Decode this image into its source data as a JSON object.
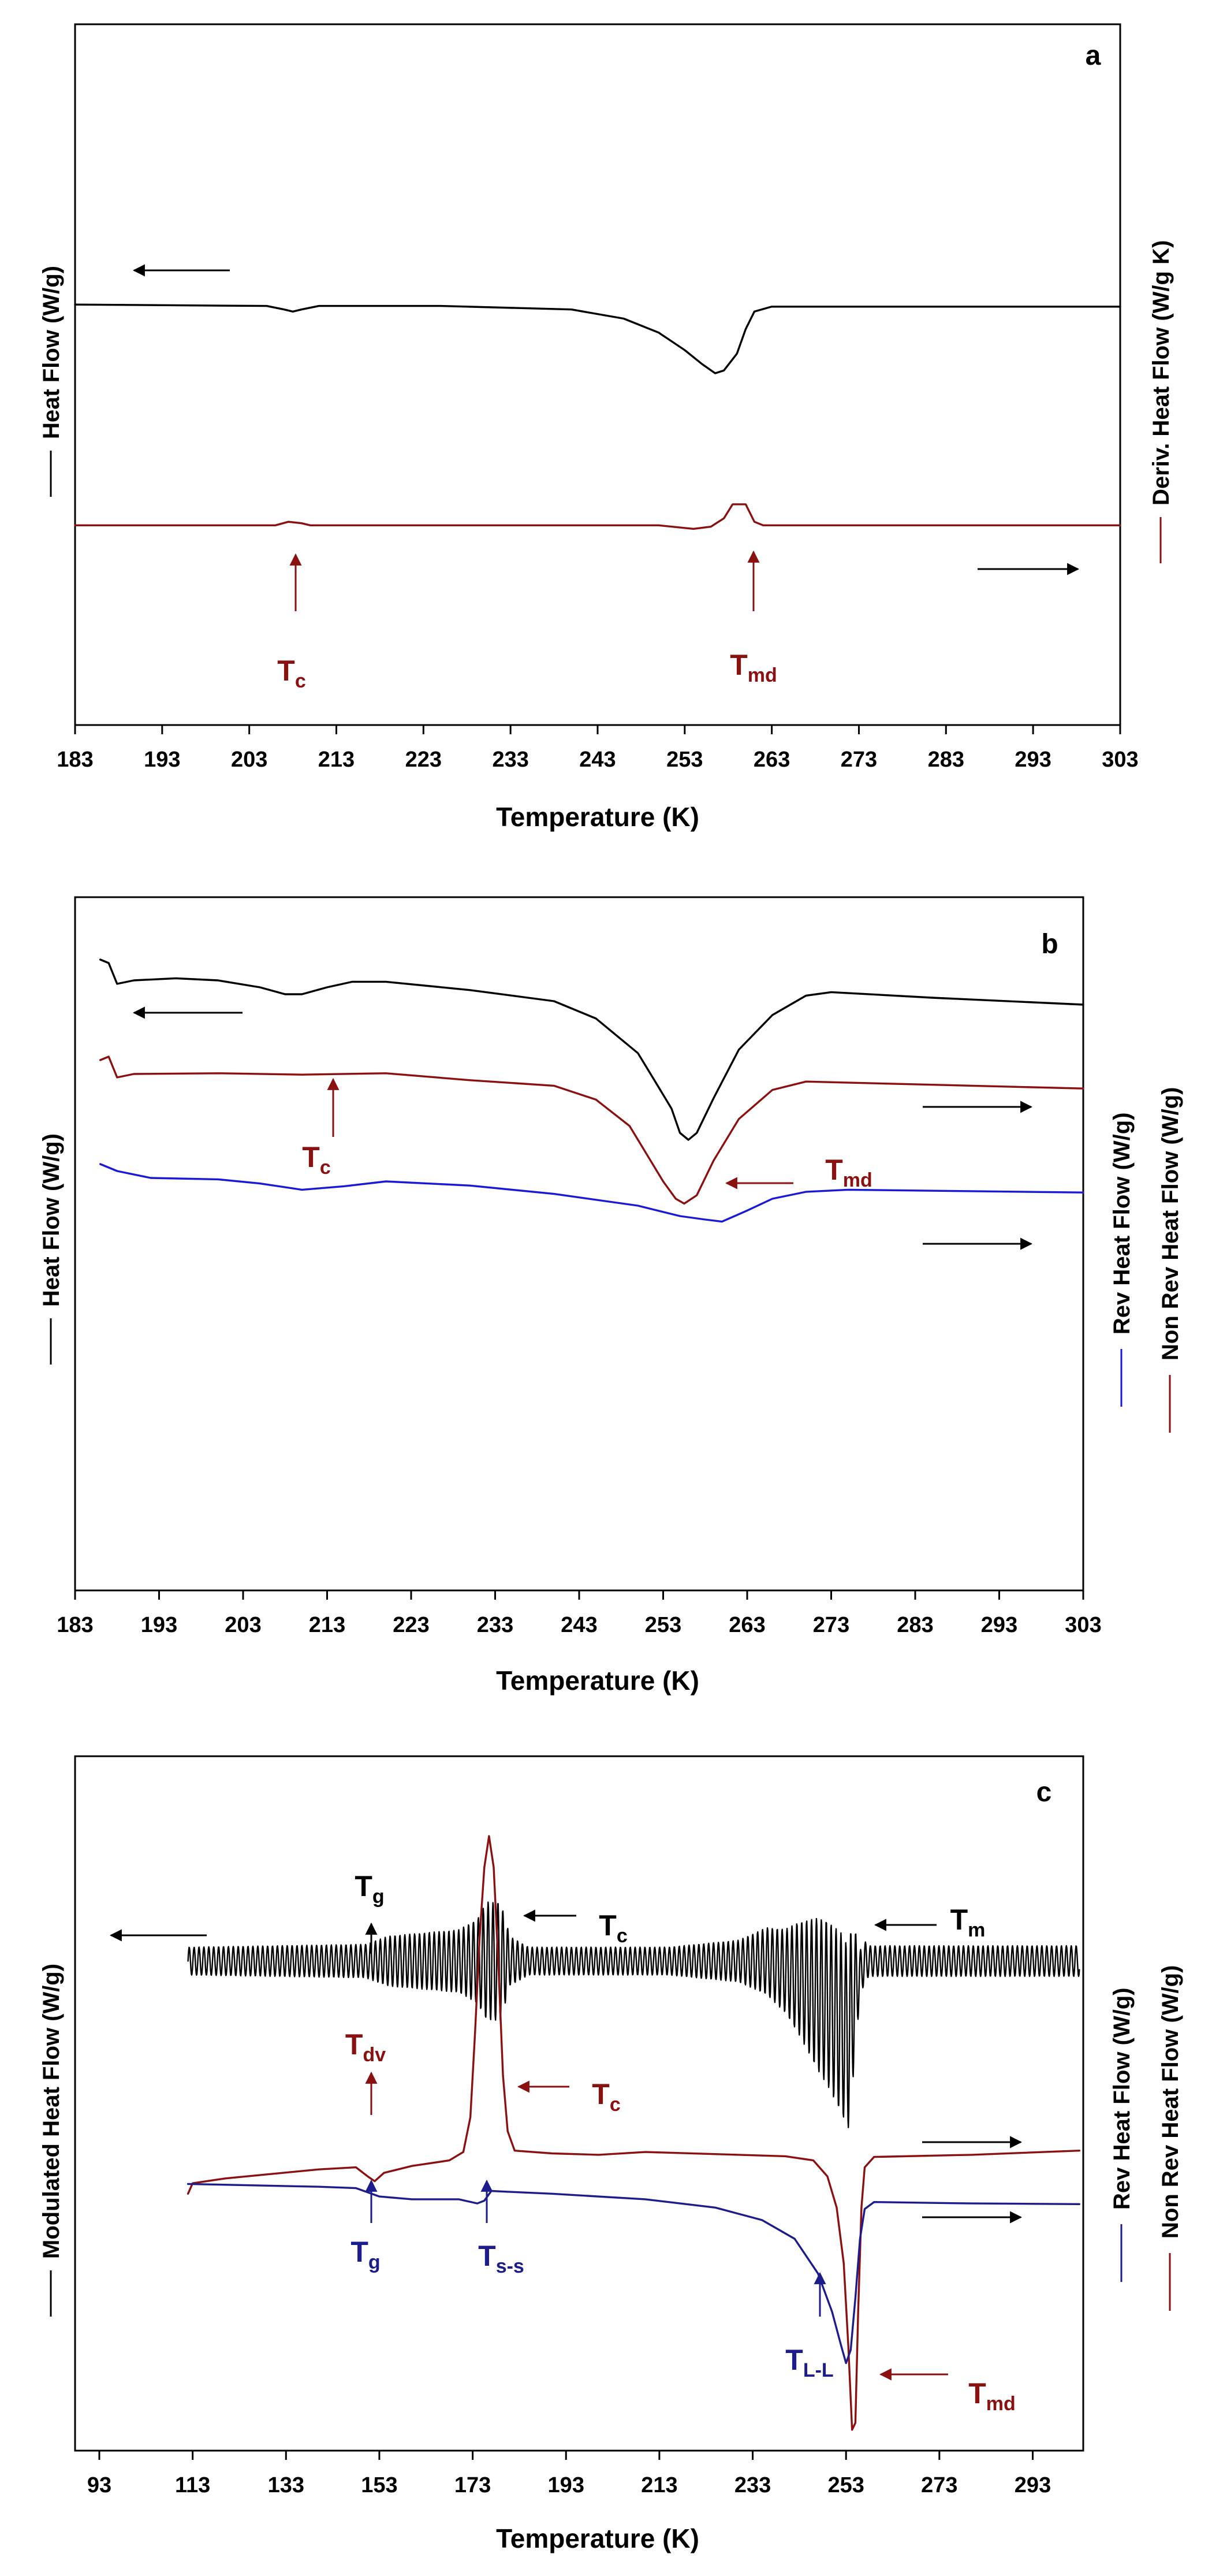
{
  "colors": {
    "black": "#000000",
    "darkred": "#8b1010",
    "blue": "#1a1ad6",
    "navy": "#1c1c8c"
  },
  "chart_data": [
    {
      "type": "line",
      "panel": "a",
      "xlabel": "Temperature (K)",
      "xlim": [
        183,
        303
      ],
      "ticks": [
        183,
        193,
        203,
        213,
        223,
        233,
        243,
        253,
        263,
        273,
        283,
        293,
        303
      ],
      "ylim": [
        0,
        100
      ],
      "left_ylabel": "Heat Flow (W/g)",
      "right_ylabels": [
        "Deriv. Heat Flow (W/g K)"
      ],
      "series": [
        {
          "name": "Heat Flow",
          "color": "#000000",
          "points": [
            [
              183,
              60.0
            ],
            [
              205,
              59.8
            ],
            [
              207,
              59.3
            ],
            [
              208,
              59.0
            ],
            [
              209,
              59.3
            ],
            [
              211,
              59.8
            ],
            [
              225,
              59.8
            ],
            [
              240,
              59.3
            ],
            [
              246,
              58.0
            ],
            [
              250,
              56.0
            ],
            [
              253,
              53.5
            ],
            [
              255,
              51.5
            ],
            [
              256.5,
              50.2
            ],
            [
              257.5,
              50.6
            ],
            [
              259,
              53.0
            ],
            [
              260,
              56.5
            ],
            [
              261,
              59.0
            ],
            [
              263,
              59.7
            ],
            [
              303,
              59.7
            ]
          ]
        },
        {
          "name": "Deriv. Heat Flow",
          "color": "#8b1010",
          "points": [
            [
              183,
              28.5
            ],
            [
              206,
              28.5
            ],
            [
              207.5,
              29.0
            ],
            [
              209,
              28.8
            ],
            [
              210,
              28.5
            ],
            [
              250,
              28.5
            ],
            [
              254,
              28.0
            ],
            [
              256,
              28.3
            ],
            [
              257.5,
              29.5
            ],
            [
              258.5,
              31.5
            ],
            [
              260,
              31.5
            ],
            [
              261,
              29.0
            ],
            [
              262,
              28.5
            ],
            [
              303,
              28.5
            ]
          ]
        }
      ],
      "annotations": [
        {
          "label": "T",
          "sub": "c",
          "color": "#8b1010"
        },
        {
          "label": "T",
          "sub": "md",
          "color": "#8b1010"
        }
      ]
    },
    {
      "type": "line",
      "panel": "b",
      "xlabel": "Temperature (K)",
      "xlim": [
        183,
        303
      ],
      "ticks": [
        183,
        193,
        203,
        213,
        223,
        233,
        243,
        253,
        263,
        273,
        283,
        293,
        303
      ],
      "ylim": [
        0,
        100
      ],
      "left_ylabel": "Heat Flow (W/g)",
      "right_ylabels": [
        "Rev Heat Flow (W/g)",
        "Non Rev Heat Flow (W/g)"
      ],
      "series": [
        {
          "name": "Heat Flow",
          "color": "#000000",
          "points": [
            [
              186,
              91.0
            ],
            [
              187,
              90.5
            ],
            [
              188,
              87.5
            ],
            [
              190,
              88.0
            ],
            [
              195,
              88.3
            ],
            [
              200,
              88.0
            ],
            [
              205,
              87.0
            ],
            [
              208,
              86.0
            ],
            [
              210,
              86.0
            ],
            [
              213,
              87.0
            ],
            [
              216,
              87.8
            ],
            [
              220,
              87.8
            ],
            [
              230,
              86.6
            ],
            [
              240,
              85.0
            ],
            [
              245,
              82.5
            ],
            [
              250,
              77.5
            ],
            [
              252,
              73.5
            ],
            [
              254,
              69.5
            ],
            [
              255,
              66.0
            ],
            [
              256,
              65.0
            ],
            [
              257,
              66.0
            ],
            [
              259,
              71.0
            ],
            [
              262,
              78.0
            ],
            [
              266,
              83.0
            ],
            [
              270,
              85.8
            ],
            [
              273,
              86.3
            ],
            [
              285,
              85.5
            ],
            [
              303,
              84.5
            ]
          ]
        },
        {
          "name": "Non Rev Heat Flow",
          "color": "#8b1010",
          "points": [
            [
              186,
              76.5
            ],
            [
              187,
              77.0
            ],
            [
              188,
              74.0
            ],
            [
              190,
              74.5
            ],
            [
              200,
              74.6
            ],
            [
              210,
              74.4
            ],
            [
              220,
              74.6
            ],
            [
              230,
              73.6
            ],
            [
              240,
              72.8
            ],
            [
              245,
              70.8
            ],
            [
              249,
              67.0
            ],
            [
              251,
              63.0
            ],
            [
              253,
              59.0
            ],
            [
              254.5,
              56.5
            ],
            [
              255.5,
              55.8
            ],
            [
              257,
              57.0
            ],
            [
              259,
              62.0
            ],
            [
              262,
              68.0
            ],
            [
              266,
              72.2
            ],
            [
              270,
              73.4
            ],
            [
              303,
              72.4
            ]
          ]
        },
        {
          "name": "Rev Heat Flow",
          "color": "#1a1ad6",
          "points": [
            [
              186,
              61.5
            ],
            [
              188,
              60.5
            ],
            [
              192,
              59.5
            ],
            [
              200,
              59.3
            ],
            [
              205,
              58.7
            ],
            [
              210,
              57.8
            ],
            [
              215,
              58.3
            ],
            [
              220,
              59.0
            ],
            [
              230,
              58.4
            ],
            [
              240,
              57.2
            ],
            [
              250,
              55.5
            ],
            [
              255,
              54.0
            ],
            [
              258,
              53.5
            ],
            [
              260,
              53.2
            ],
            [
              263,
              54.8
            ],
            [
              266,
              56.5
            ],
            [
              270,
              57.5
            ],
            [
              275,
              57.8
            ],
            [
              303,
              57.4
            ]
          ]
        }
      ],
      "annotations": [
        {
          "label": "T",
          "sub": "c",
          "color": "#8b1010"
        },
        {
          "label": "T",
          "sub": "md",
          "color": "#8b1010"
        }
      ]
    },
    {
      "type": "line",
      "panel": "c",
      "xlabel": "Temperature (K)",
      "xlim": [
        88,
        303
      ],
      "ticks": [
        93,
        113,
        133,
        153,
        173,
        193,
        213,
        233,
        253,
        273,
        293
      ],
      "ylim": [
        0,
        100
      ],
      "left_ylabel": "Modulated Heat Flow (W/g)",
      "right_ylabels": [
        "Rev Heat Flow (W/g)",
        "Non Rev Heat Flow (W/g)"
      ],
      "series": [
        {
          "name": "Modulated Heat Flow",
          "color": "#000000",
          "oscillating": true,
          "center": 70.5,
          "amplitude_envelope": [
            [
              112,
              2.0
            ],
            [
              150,
              2.4
            ],
            [
              155,
              3.6
            ],
            [
              170,
              4.5
            ],
            [
              174,
              6.0
            ],
            [
              176,
              8.5
            ],
            [
              179,
              8.5
            ],
            [
              181,
              3.5
            ],
            [
              185,
              2.0
            ],
            [
              215,
              2.0
            ],
            [
              230,
              3.0
            ],
            [
              240,
              6.0
            ],
            [
              247,
              11.0
            ],
            [
              252,
              13.0
            ],
            [
              254,
              13.0
            ],
            [
              256,
              3.5
            ],
            [
              258,
              2.2
            ],
            [
              303,
              2.2
            ]
          ],
          "center_shift": [
            [
              112,
              0
            ],
            [
              236,
              0
            ],
            [
              243,
              -2.5
            ],
            [
              249,
              -6.0
            ],
            [
              252,
              -9.0
            ],
            [
              253.5,
              -11.0
            ],
            [
              255,
              -4.0
            ],
            [
              257,
              0
            ],
            [
              303,
              0
            ]
          ]
        },
        {
          "name": "Non Rev Heat Flow",
          "color": "#8b1010",
          "points": [
            [
              112,
              37.0
            ],
            [
              113,
              38.5
            ],
            [
              120,
              39.2
            ],
            [
              140,
              40.5
            ],
            [
              148,
              40.8
            ],
            [
              150.5,
              39.5
            ],
            [
              152,
              38.8
            ],
            [
              154,
              40.0
            ],
            [
              160,
              41.0
            ],
            [
              168,
              41.8
            ],
            [
              171,
              43.0
            ],
            [
              172.5,
              48.0
            ],
            [
              173.5,
              60.0
            ],
            [
              174.5,
              74.0
            ],
            [
              175.5,
              84.0
            ],
            [
              176.5,
              88.5
            ],
            [
              177.5,
              84.0
            ],
            [
              178.5,
              70.0
            ],
            [
              179.5,
              54.0
            ],
            [
              180.5,
              46.0
            ],
            [
              182,
              43.2
            ],
            [
              190,
              42.8
            ],
            [
              200,
              42.6
            ],
            [
              210,
              43.0
            ],
            [
              230,
              42.6
            ],
            [
              240,
              42.4
            ],
            [
              246,
              41.8
            ],
            [
              249,
              39.5
            ],
            [
              251,
              35.0
            ],
            [
              252.5,
              27.0
            ],
            [
              253.5,
              15.0
            ],
            [
              254.3,
              3.0
            ],
            [
              255,
              4.0
            ],
            [
              255.6,
              20.0
            ],
            [
              256.3,
              35.0
            ],
            [
              257,
              40.8
            ],
            [
              259,
              42.3
            ],
            [
              280,
              42.6
            ],
            [
              303,
              43.2
            ]
          ]
        },
        {
          "name": "Rev Heat Flow",
          "color": "#1c1c8c",
          "points": [
            [
              112,
              38.4
            ],
            [
              140,
              38.0
            ],
            [
              148,
              37.8
            ],
            [
              153,
              36.6
            ],
            [
              160,
              36.2
            ],
            [
              170,
              36.2
            ],
            [
              174,
              35.6
            ],
            [
              175.5,
              36.0
            ],
            [
              177,
              37.4
            ],
            [
              180,
              37.3
            ],
            [
              190,
              37.0
            ],
            [
              210,
              36.2
            ],
            [
              225,
              35.0
            ],
            [
              235,
              33.2
            ],
            [
              242,
              30.5
            ],
            [
              247,
              25.5
            ],
            [
              250,
              20.0
            ],
            [
              252,
              15.0
            ],
            [
              253,
              12.6
            ],
            [
              254,
              14.5
            ],
            [
              255,
              22.0
            ],
            [
              256,
              30.5
            ],
            [
              257,
              34.8
            ],
            [
              259,
              35.8
            ],
            [
              280,
              35.6
            ],
            [
              303,
              35.5
            ]
          ]
        }
      ],
      "annotations": [
        {
          "label": "T",
          "sub": "g",
          "color": "#000000"
        },
        {
          "label": "T",
          "sub": "c",
          "color": "#000000"
        },
        {
          "label": "T",
          "sub": "m",
          "color": "#000000"
        },
        {
          "label": "T",
          "sub": "dv",
          "color": "#8b1010"
        },
        {
          "label": "T",
          "sub": "c",
          "color": "#8b1010"
        },
        {
          "label": "T",
          "sub": "g",
          "color": "#1c1c8c"
        },
        {
          "label": "T",
          "sub": "s-s",
          "color": "#1c1c8c"
        },
        {
          "label": "T",
          "sub": "L-L",
          "color": "#1c1c8c"
        },
        {
          "label": "T",
          "sub": "md",
          "color": "#8b1010"
        }
      ]
    }
  ]
}
